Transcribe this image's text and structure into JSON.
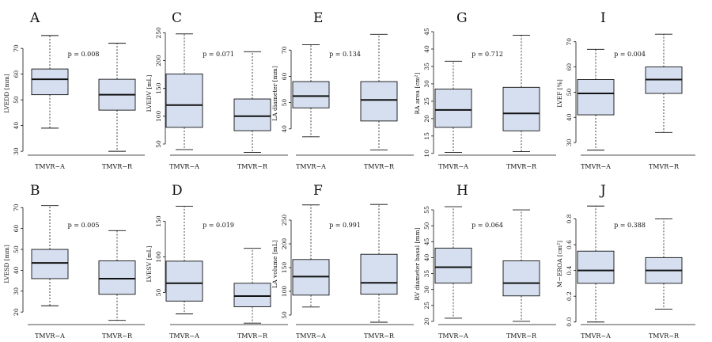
{
  "chart_data": [
    {
      "id": "A",
      "type": "box",
      "ylabel": "LVEDD [mm]",
      "pvalue": "p = 0.008",
      "ylim": [
        28.5,
        76.5
      ],
      "yticks": [
        30,
        40,
        50,
        60,
        70
      ],
      "categories": [
        "TMVR−A",
        "TMVR−R"
      ],
      "boxes": [
        {
          "name": "TMVR−A",
          "min": 39,
          "q1": 52,
          "median": 58,
          "q3": 62,
          "max": 75
        },
        {
          "name": "TMVR−R",
          "min": 30,
          "q1": 46,
          "median": 52,
          "q3": 58,
          "max": 72
        }
      ]
    },
    {
      "id": "C",
      "type": "box",
      "ylabel": "LVEDV [mL]",
      "pvalue": "p = 0.071",
      "ylim": [
        30,
        252
      ],
      "yticks": [
        50,
        100,
        150,
        200,
        250
      ],
      "categories": [
        "TMVR−A",
        "TMVR−R"
      ],
      "boxes": [
        {
          "name": "TMVR−A",
          "min": 40,
          "q1": 80,
          "median": 120,
          "q3": 176,
          "max": 248
        },
        {
          "name": "TMVR−R",
          "min": 35,
          "q1": 74,
          "median": 100,
          "q3": 131,
          "max": 216
        }
      ]
    },
    {
      "id": "E",
      "type": "box",
      "ylabel": "LA diameter [mm]",
      "pvalue": "p = 0.134",
      "ylim": [
        30,
        77
      ],
      "yticks": [
        40,
        50,
        60,
        70
      ],
      "categories": [
        "TMVR−A",
        "TMVR−R"
      ],
      "boxes": [
        {
          "name": "TMVR−A",
          "min": 37,
          "q1": 48,
          "median": 52.5,
          "q3": 58,
          "max": 72
        },
        {
          "name": "TMVR−R",
          "min": 32,
          "q1": 43,
          "median": 51,
          "q3": 58,
          "max": 76
        }
      ]
    },
    {
      "id": "G",
      "type": "box",
      "ylabel": "RA area [cm²]",
      "pvalue": "p = 0.712",
      "ylim": [
        9.5,
        45
      ],
      "yticks": [
        10,
        15,
        20,
        25,
        30,
        35,
        40,
        45
      ],
      "categories": [
        "TMVR−A",
        "TMVR−R"
      ],
      "boxes": [
        {
          "name": "TMVR−A",
          "min": 10.3,
          "q1": 17.5,
          "median": 22.5,
          "q3": 28.5,
          "max": 36.5
        },
        {
          "name": "TMVR−R",
          "min": 10.5,
          "q1": 16.5,
          "median": 21.5,
          "q3": 29,
          "max": 44
        }
      ]
    },
    {
      "id": "I",
      "type": "box",
      "ylabel": "LVEF [%]",
      "pvalue": "p = 0.004",
      "ylim": [
        25,
        74
      ],
      "yticks": [
        30,
        40,
        50,
        60,
        70
      ],
      "categories": [
        "TMVR−A",
        "TMVR−R"
      ],
      "boxes": [
        {
          "name": "TMVR−A",
          "min": 27,
          "q1": 41,
          "median": 49.5,
          "q3": 55,
          "max": 67
        },
        {
          "name": "TMVR−R",
          "min": 34,
          "q1": 49.5,
          "median": 55,
          "q3": 60,
          "max": 73
        }
      ]
    },
    {
      "id": "B",
      "type": "box",
      "ylabel": "LVESD [mm]",
      "pvalue": "p = 0.005",
      "ylim": [
        14,
        72
      ],
      "yticks": [
        20,
        30,
        40,
        50,
        60,
        70
      ],
      "categories": [
        "TMVR−A",
        "TMVR−R"
      ],
      "boxes": [
        {
          "name": "TMVR−A",
          "min": 23,
          "q1": 36,
          "median": 43.5,
          "q3": 50,
          "max": 71
        },
        {
          "name": "TMVR−R",
          "min": 16,
          "q1": 28.5,
          "median": 36,
          "q3": 44.5,
          "max": 59
        }
      ]
    },
    {
      "id": "D",
      "type": "box",
      "ylabel": "LVESV [mL]",
      "pvalue": "p = 0.019",
      "ylim": [
        5,
        175
      ],
      "yticks": [
        50,
        100,
        150
      ],
      "categories": [
        "TMVR−A",
        "TMVR−R"
      ],
      "boxes": [
        {
          "name": "TMVR−A",
          "min": 20,
          "q1": 38,
          "median": 63,
          "q3": 94,
          "max": 171
        },
        {
          "name": "TMVR−R",
          "min": 7,
          "q1": 30,
          "median": 45,
          "q3": 63,
          "max": 112
        }
      ]
    },
    {
      "id": "F",
      "type": "box",
      "ylabel": "LA volume [mL]",
      "pvalue": "p = 0.991",
      "ylim": [
        30,
        285
      ],
      "yticks": [
        50,
        100,
        150,
        200,
        250
      ],
      "categories": [
        "TMVR−A",
        "TMVR−R"
      ],
      "boxes": [
        {
          "name": "TMVR−A",
          "min": 67,
          "q1": 92,
          "median": 131,
          "q3": 167,
          "max": 282
        },
        {
          "name": "TMVR−R",
          "min": 35,
          "q1": 94,
          "median": 118,
          "q3": 178,
          "max": 283
        }
      ]
    },
    {
      "id": "H",
      "type": "box",
      "ylabel": "RV diameter basal [mm]",
      "pvalue": "p = 0.064",
      "ylim": [
        19,
        57
      ],
      "yticks": [
        20,
        25,
        30,
        35,
        40,
        45,
        50,
        55
      ],
      "categories": [
        "TMVR−A",
        "TMVR−R"
      ],
      "boxes": [
        {
          "name": "TMVR−A",
          "min": 21,
          "q1": 32,
          "median": 37,
          "q3": 43,
          "max": 56
        },
        {
          "name": "TMVR−R",
          "min": 20,
          "q1": 28,
          "median": 32,
          "q3": 39,
          "max": 55
        }
      ]
    },
    {
      "id": "J",
      "type": "box",
      "ylabel": "M−EROA [cm²]",
      "pvalue": "p = 0.388",
      "ylim": [
        -0.02,
        0.92
      ],
      "yticks": [
        0.0,
        0.2,
        0.4,
        0.6,
        0.8
      ],
      "tickDecimals": 1,
      "categories": [
        "TMVR−A",
        "TMVR−R"
      ],
      "boxes": [
        {
          "name": "TMVR−A",
          "min": 0.0,
          "q1": 0.3,
          "median": 0.4,
          "q3": 0.55,
          "max": 0.9
        },
        {
          "name": "TMVR−R",
          "min": 0.1,
          "q1": 0.3,
          "median": 0.4,
          "q3": 0.5,
          "max": 0.8
        }
      ]
    }
  ],
  "style": {
    "box_fill": "#d5dff0",
    "stroke": "#111111"
  }
}
